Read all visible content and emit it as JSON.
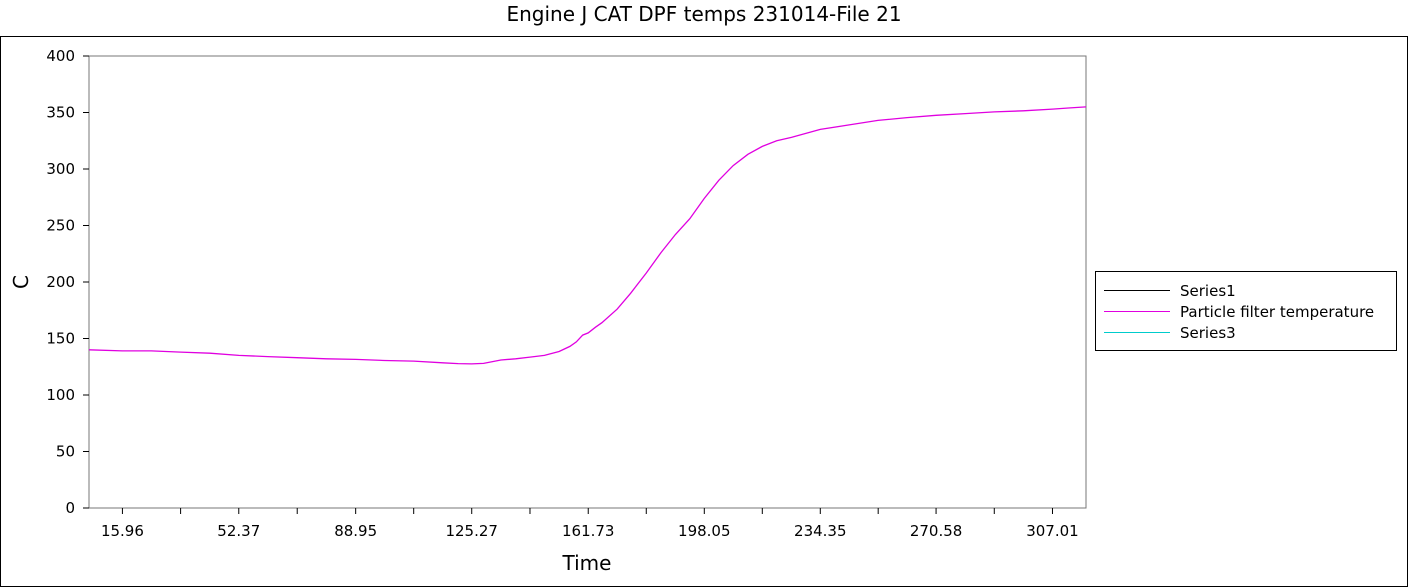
{
  "chart_data": {
    "type": "line",
    "title": "Engine J CAT DPF temps 231014-File 21",
    "xlabel": "Time",
    "ylabel": "C",
    "xlim": [
      5.5,
      317.5
    ],
    "ylim": [
      0,
      400
    ],
    "x_ticks": [
      "15.96",
      "52.37",
      "88.95",
      "125.27",
      "161.73",
      "198.05",
      "234.35",
      "270.58",
      "307.01"
    ],
    "y_ticks": [
      "0",
      "50",
      "100",
      "150",
      "200",
      "250",
      "300",
      "350",
      "400"
    ],
    "legend_position": "right",
    "grid": false,
    "series": [
      {
        "name": "Series1",
        "color": "#000000",
        "x": [],
        "y": []
      },
      {
        "name": "Particle filter temperature",
        "color": "#e000e0",
        "x": [
          5.5,
          15.96,
          25,
          34.2,
          43.3,
          52.37,
          61.5,
          70.6,
          79.8,
          88.95,
          98,
          107.1,
          116.2,
          121,
          125.27,
          129,
          134.4,
          139,
          143.5,
          148,
          152.6,
          156,
          158,
          160,
          161.73,
          164,
          166,
          170.8,
          175,
          179.9,
          184.5,
          189,
          193.5,
          198.05,
          202.6,
          207.1,
          211.7,
          216.2,
          220.7,
          225.3,
          234.35,
          243.4,
          252.4,
          261.5,
          270.58,
          279.7,
          288.8,
          297.9,
          307.01,
          312,
          317.5
        ],
        "y": [
          140,
          139,
          139,
          138,
          137,
          135,
          134,
          133,
          132,
          131.5,
          130.5,
          130,
          128.5,
          127.8,
          127.5,
          128,
          131,
          132,
          133.5,
          135,
          138.5,
          143,
          147,
          153,
          155,
          160,
          164,
          176,
          190,
          208,
          226,
          242,
          256,
          274,
          290,
          303,
          313,
          320,
          325,
          328,
          335,
          339,
          343,
          345.5,
          347.5,
          349,
          350.5,
          351.5,
          353,
          354,
          355
        ]
      },
      {
        "name": "Series3",
        "color": "#00cccc",
        "x": [],
        "y": []
      }
    ]
  }
}
